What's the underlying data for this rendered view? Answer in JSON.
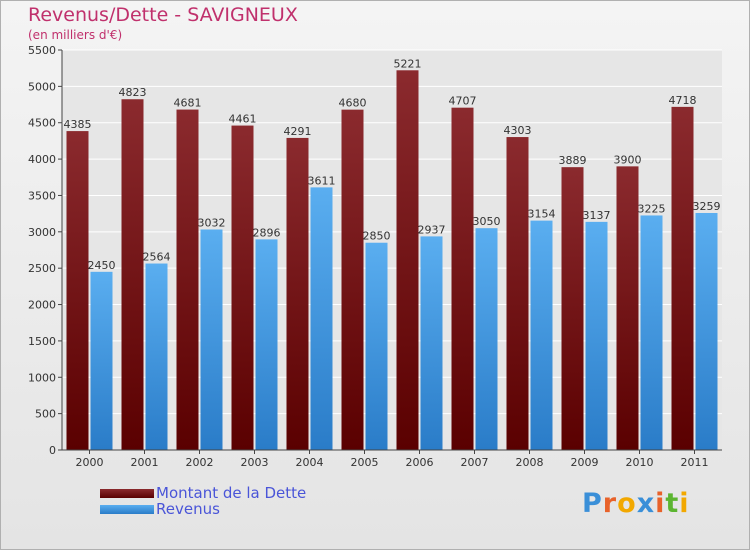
{
  "title": "Revenus/Dette - SAVIGNEUX",
  "subtitle": "(en milliers d'€)",
  "chart_data": {
    "type": "bar",
    "categories": [
      "2000",
      "2001",
      "2002",
      "2003",
      "2004",
      "2005",
      "2006",
      "2007",
      "2008",
      "2009",
      "2010",
      "2011"
    ],
    "series": [
      {
        "name": "Montant de la Dette",
        "values": [
          4385,
          4823,
          4681,
          4461,
          4291,
          4680,
          5221,
          4707,
          4303,
          3889,
          3900,
          4718
        ],
        "color_top": "#8b2a2e",
        "color_bottom": "#5a0000"
      },
      {
        "name": "Revenus",
        "values": [
          2450,
          2564,
          3032,
          2896,
          3611,
          2850,
          2937,
          3050,
          3154,
          3137,
          3225,
          3259
        ],
        "color_top": "#5aaef0",
        "color_bottom": "#2a7cc8"
      }
    ],
    "ylim": [
      0,
      5500
    ],
    "yticks": [
      0,
      500,
      1000,
      1500,
      2000,
      2500,
      3000,
      3500,
      4000,
      4500,
      5000,
      5500
    ],
    "grid": true,
    "legend_position": "bottom-left"
  },
  "logo_letters": [
    "P",
    "r",
    "o",
    "x",
    "i",
    "t",
    "i"
  ],
  "logo_colors": [
    "#3a8fd8",
    "#e8622a",
    "#f2a800",
    "#3a8fd8",
    "#e8622a",
    "#5cb531",
    "#f2a800"
  ]
}
